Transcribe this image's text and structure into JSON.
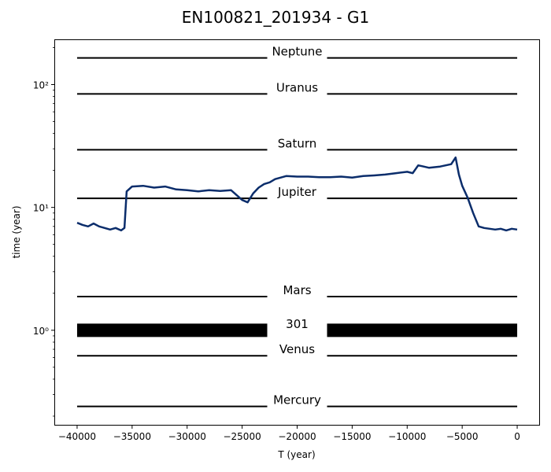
{
  "chart_data": {
    "type": "line",
    "title": "EN100821_201934 - G1",
    "xlabel": "T (year)",
    "ylabel": "time (year)",
    "xlim": [
      -42000,
      2000
    ],
    "ylim": [
      0.17,
      230
    ],
    "yscale": "log",
    "grid": false,
    "x_ticks": [
      -40000,
      -35000,
      -30000,
      -25000,
      -20000,
      -15000,
      -10000,
      -5000,
      0
    ],
    "x_tick_labels": [
      "−40000",
      "−35000",
      "−30000",
      "−25000",
      "−20000",
      "−15000",
      "−10000",
      "−5000",
      "0"
    ],
    "y_ticks": [
      1,
      10,
      100
    ],
    "y_tick_labels": [
      "10⁰",
      "10¹",
      "10²"
    ],
    "y_minor_ticks": [
      0.2,
      0.3,
      0.4,
      0.5,
      0.6,
      0.7,
      0.8,
      0.9,
      2,
      3,
      4,
      5,
      6,
      7,
      8,
      9,
      20,
      30,
      40,
      50,
      60,
      70,
      80,
      90,
      200
    ],
    "reference_lines": [
      {
        "name": "Mercury",
        "value": 0.24,
        "x_range": [
          -40000,
          0
        ]
      },
      {
        "name": "Venus",
        "value": 0.62,
        "x_range": [
          -40000,
          0
        ]
      },
      {
        "name": "301",
        "value": 1.0,
        "x_range": [
          -40000,
          0
        ],
        "style": "thick"
      },
      {
        "name": "Mars",
        "value": 1.88,
        "x_range": [
          -40000,
          0
        ]
      },
      {
        "name": "Jupiter",
        "value": 11.86,
        "x_range": [
          -40000,
          0
        ]
      },
      {
        "name": "Saturn",
        "value": 29.46,
        "x_range": [
          -40000,
          0
        ]
      },
      {
        "name": "Uranus",
        "value": 84.0,
        "x_range": [
          -40000,
          0
        ]
      },
      {
        "name": "Neptune",
        "value": 164.8,
        "x_range": [
          -40000,
          0
        ]
      }
    ],
    "series": [
      {
        "color": "#0b2d6b",
        "x": [
          -40000,
          -39500,
          -39000,
          -38500,
          -38000,
          -37500,
          -37000,
          -36500,
          -36000,
          -35700,
          -35500,
          -35000,
          -34000,
          -33000,
          -32000,
          -31000,
          -30000,
          -29000,
          -28000,
          -27000,
          -26000,
          -25000,
          -24500,
          -24000,
          -23500,
          -23000,
          -22500,
          -22000,
          -21000,
          -20000,
          -19000,
          -18000,
          -17000,
          -16000,
          -15000,
          -14000,
          -13000,
          -12000,
          -11000,
          -10000,
          -9500,
          -9000,
          -8500,
          -8000,
          -7000,
          -6000,
          -5600,
          -5300,
          -5000,
          -4500,
          -4000,
          -3500,
          -3000,
          -2500,
          -2000,
          -1500,
          -1000,
          -500,
          0
        ],
        "y": [
          7.5,
          7.2,
          7.0,
          7.4,
          7.0,
          6.8,
          6.6,
          6.8,
          6.5,
          6.8,
          13.5,
          14.8,
          15.0,
          14.5,
          14.8,
          14.0,
          13.8,
          13.5,
          13.8,
          13.6,
          13.8,
          11.5,
          11.0,
          13.0,
          14.5,
          15.5,
          16.0,
          17.0,
          18.0,
          17.8,
          17.8,
          17.6,
          17.6,
          17.8,
          17.5,
          18.0,
          18.2,
          18.5,
          19.0,
          19.5,
          19.0,
          22.0,
          21.5,
          21.0,
          21.5,
          22.5,
          25.5,
          18.5,
          15.0,
          12.0,
          9.0,
          7.0,
          6.8,
          6.7,
          6.6,
          6.7,
          6.5,
          6.7,
          6.6
        ]
      }
    ]
  }
}
